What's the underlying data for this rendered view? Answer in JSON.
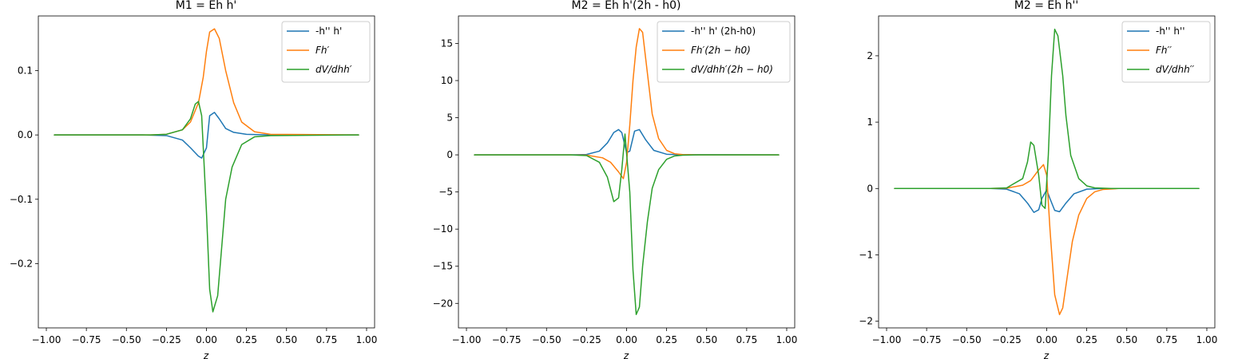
{
  "chart_data": [
    {
      "type": "line",
      "title": "M1 = Eh h'",
      "xlabel": "z",
      "ylabel": "",
      "xlim": [
        -1.05,
        1.05
      ],
      "ylim": [
        -0.3,
        0.185
      ],
      "xticks": [
        -1.0,
        -0.75,
        -0.5,
        -0.25,
        0.0,
        0.25,
        0.5,
        0.75,
        1.0
      ],
      "xtick_labels": [
        "−1.00",
        "−0.75",
        "−0.50",
        "−0.25",
        "0.00",
        "0.25",
        "0.50",
        "0.75",
        "1.00"
      ],
      "yticks": [
        -0.2,
        -0.1,
        0.0,
        0.1
      ],
      "ytick_labels": [
        "−0.2",
        "−0.1",
        "0.0",
        "0.1"
      ],
      "legend_position": "top-right",
      "series": [
        {
          "name": "-h'' h'",
          "color": "#1f77b4",
          "italic": false,
          "x": [
            -0.95,
            -0.4,
            -0.25,
            -0.15,
            -0.1,
            -0.05,
            -0.03,
            0.0,
            0.02,
            0.05,
            0.08,
            0.12,
            0.17,
            0.25,
            0.4,
            0.95
          ],
          "y": [
            0,
            0,
            -0.001,
            -0.008,
            -0.02,
            -0.033,
            -0.036,
            -0.02,
            0.03,
            0.035,
            0.025,
            0.01,
            0.004,
            0.001,
            0,
            0
          ]
        },
        {
          "name": "Fh′",
          "color": "#ff7f0e",
          "italic": true,
          "x": [
            -0.95,
            -0.35,
            -0.25,
            -0.15,
            -0.1,
            -0.05,
            -0.02,
            0.0,
            0.02,
            0.05,
            0.08,
            0.12,
            0.17,
            0.22,
            0.3,
            0.4,
            0.95
          ],
          "y": [
            0,
            0,
            0.001,
            0.008,
            0.02,
            0.05,
            0.09,
            0.13,
            0.16,
            0.165,
            0.15,
            0.1,
            0.05,
            0.02,
            0.005,
            0.001,
            0
          ]
        },
        {
          "name": "dV/dhh′",
          "color": "#2ca02c",
          "italic": true,
          "x": [
            -0.95,
            -0.35,
            -0.25,
            -0.15,
            -0.1,
            -0.07,
            -0.05,
            -0.03,
            0.0,
            0.02,
            0.04,
            0.07,
            0.1,
            0.12,
            0.16,
            0.22,
            0.3,
            0.4,
            0.95
          ],
          "y": [
            0,
            0,
            0.001,
            0.008,
            0.025,
            0.048,
            0.052,
            0.03,
            -0.12,
            -0.24,
            -0.275,
            -0.25,
            -0.16,
            -0.1,
            -0.05,
            -0.015,
            -0.003,
            -0.001,
            0
          ]
        }
      ]
    },
    {
      "type": "line",
      "title": "M2 = Eh h'(2h - h0)",
      "xlabel": "z",
      "ylabel": "",
      "xlim": [
        -1.05,
        1.05
      ],
      "ylim": [
        -23.3,
        18.7
      ],
      "xticks": [
        -1.0,
        -0.75,
        -0.5,
        -0.25,
        0.0,
        0.25,
        0.5,
        0.75,
        1.0
      ],
      "xtick_labels": [
        "−1.00",
        "−0.75",
        "−0.50",
        "−0.25",
        "0.00",
        "0.25",
        "0.50",
        "0.75",
        "1.00"
      ],
      "yticks": [
        -20,
        -15,
        -10,
        -5,
        0,
        5,
        10,
        15
      ],
      "ytick_labels": [
        "−20",
        "−15",
        "−10",
        "−5",
        "0",
        "5",
        "10",
        "15"
      ],
      "legend_position": "top-right",
      "series": [
        {
          "name": "-h'' h' (2h-h0)",
          "color": "#1f77b4",
          "italic": false,
          "x": [
            -0.95,
            -0.35,
            -0.25,
            -0.17,
            -0.12,
            -0.08,
            -0.05,
            -0.03,
            0.0,
            0.02,
            0.05,
            0.08,
            0.12,
            0.17,
            0.25,
            0.35,
            0.95
          ],
          "y": [
            0,
            0,
            0.05,
            0.5,
            1.6,
            3.0,
            3.4,
            3.0,
            0.3,
            0.5,
            3.2,
            3.4,
            2.0,
            0.6,
            0.08,
            0.01,
            0
          ]
        },
        {
          "name": "Fh′(2h − h0)",
          "color": "#ff7f0e",
          "italic": true,
          "x": [
            -0.95,
            -0.35,
            -0.25,
            -0.15,
            -0.1,
            -0.05,
            -0.02,
            0.0,
            0.02,
            0.04,
            0.06,
            0.08,
            0.1,
            0.13,
            0.16,
            0.2,
            0.25,
            0.3,
            0.35,
            0.45,
            0.95
          ],
          "y": [
            0,
            0,
            -0.05,
            -0.4,
            -1.0,
            -2.3,
            -3.2,
            -1.0,
            4.0,
            10.0,
            14.5,
            17.0,
            16.5,
            11.0,
            5.5,
            2.2,
            0.6,
            0.15,
            0.04,
            0,
            0
          ]
        },
        {
          "name": "dV/dhh′(2h − h0)",
          "color": "#2ca02c",
          "italic": true,
          "x": [
            -0.95,
            -0.35,
            -0.25,
            -0.17,
            -0.12,
            -0.08,
            -0.05,
            -0.03,
            -0.01,
            0.02,
            0.04,
            0.06,
            0.08,
            0.1,
            0.13,
            0.16,
            0.2,
            0.25,
            0.3,
            0.35,
            0.45,
            0.95
          ],
          "y": [
            0,
            0,
            -0.1,
            -1.0,
            -3.0,
            -6.3,
            -5.8,
            -2.0,
            2.8,
            -5.0,
            -15.5,
            -21.5,
            -20.5,
            -15.0,
            -9.0,
            -4.5,
            -2.0,
            -0.6,
            -0.15,
            -0.04,
            0,
            0
          ]
        }
      ]
    },
    {
      "type": "line",
      "title": "M2 = Eh h''",
      "xlabel": "z",
      "ylabel": "",
      "xlim": [
        -1.05,
        1.05
      ],
      "ylim": [
        -2.1,
        2.6
      ],
      "xticks": [
        -1.0,
        -0.75,
        -0.5,
        -0.25,
        0.0,
        0.25,
        0.5,
        0.75,
        1.0
      ],
      "xtick_labels": [
        "−1.00",
        "−0.75",
        "−0.50",
        "−0.25",
        "0.00",
        "0.25",
        "0.50",
        "0.75",
        "1.00"
      ],
      "yticks": [
        -2,
        -1,
        0,
        1,
        2
      ],
      "ytick_labels": [
        "−2",
        "−1",
        "0",
        "1",
        "2"
      ],
      "legend_position": "top-right",
      "series": [
        {
          "name": "-h'' h''",
          "color": "#1f77b4",
          "italic": false,
          "x": [
            -0.95,
            -0.35,
            -0.25,
            -0.17,
            -0.12,
            -0.08,
            -0.05,
            -0.03,
            0.0,
            0.02,
            0.05,
            0.08,
            0.12,
            0.17,
            0.25,
            0.35,
            0.95
          ],
          "y": [
            0,
            0,
            -0.01,
            -0.08,
            -0.22,
            -0.36,
            -0.32,
            -0.15,
            -0.02,
            -0.15,
            -0.33,
            -0.35,
            -0.22,
            -0.08,
            -0.01,
            0,
            0
          ]
        },
        {
          "name": "Fh′′",
          "color": "#ff7f0e",
          "italic": true,
          "x": [
            -0.95,
            -0.35,
            -0.25,
            -0.15,
            -0.1,
            -0.05,
            -0.02,
            0.0,
            0.02,
            0.05,
            0.08,
            0.1,
            0.13,
            0.16,
            0.2,
            0.25,
            0.3,
            0.35,
            0.45,
            0.95
          ],
          "y": [
            0,
            0,
            0.005,
            0.05,
            0.12,
            0.28,
            0.36,
            0.2,
            -0.6,
            -1.6,
            -1.9,
            -1.8,
            -1.3,
            -0.8,
            -0.4,
            -0.15,
            -0.05,
            -0.015,
            0,
            0
          ]
        },
        {
          "name": "dV/dhh′′",
          "color": "#2ca02c",
          "italic": true,
          "x": [
            -0.95,
            -0.35,
            -0.25,
            -0.15,
            -0.12,
            -0.1,
            -0.08,
            -0.05,
            -0.03,
            -0.01,
            0.01,
            0.03,
            0.05,
            0.07,
            0.1,
            0.12,
            0.15,
            0.2,
            0.25,
            0.3,
            0.4,
            0.95
          ],
          "y": [
            0,
            0,
            0.01,
            0.15,
            0.4,
            0.7,
            0.65,
            0.2,
            -0.25,
            -0.3,
            0.5,
            1.7,
            2.4,
            2.3,
            1.7,
            1.1,
            0.5,
            0.15,
            0.04,
            0.01,
            0,
            0
          ]
        }
      ]
    }
  ]
}
